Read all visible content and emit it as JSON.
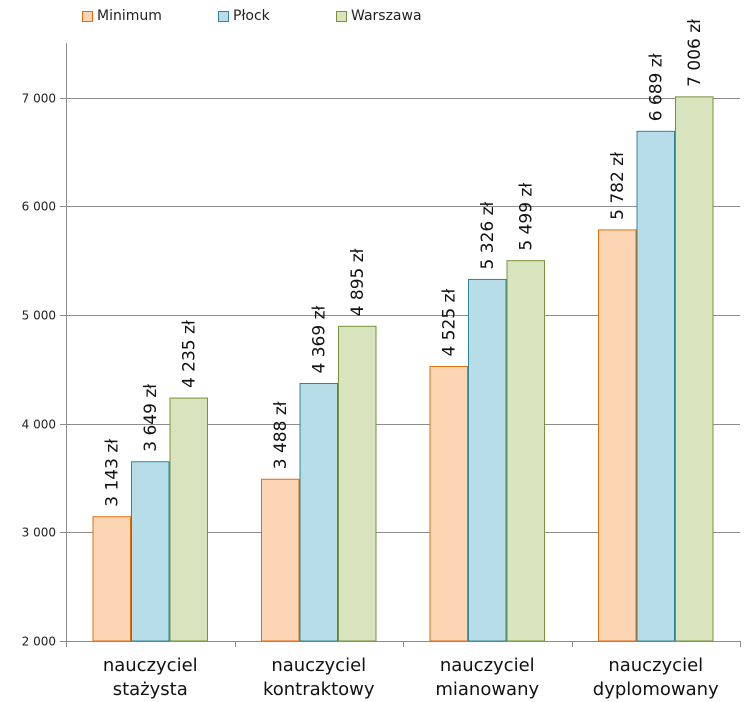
{
  "chart_data": {
    "type": "bar",
    "categories": [
      [
        "nauczyciel",
        "stażysta"
      ],
      [
        "nauczyciel",
        "kontraktowy"
      ],
      [
        "nauczyciel",
        "mianowany"
      ],
      [
        "nauczyciel",
        "dyplomowany"
      ]
    ],
    "series": [
      {
        "name": "Minimum",
        "values": [
          3143,
          3488,
          4525,
          5782
        ],
        "labels": [
          "3 143 zł",
          "3 488 zł",
          "4 525 zł",
          "5 782 zł"
        ],
        "fill": "#fcd5b5",
        "stroke": "#e46c0a"
      },
      {
        "name": "Płock",
        "values": [
          3649,
          4369,
          5326,
          6689
        ],
        "labels": [
          "3 649 zł",
          "4 369 zł",
          "5 326 zł",
          "6 689 zł"
        ],
        "fill": "#b7dee8",
        "stroke": "#31859c"
      },
      {
        "name": "Warszawa",
        "values": [
          4235,
          4895,
          5499,
          7006
        ],
        "labels": [
          "4 235 zł",
          "4 895 zł",
          "5 499 zł",
          "7 006 zł"
        ],
        "fill": "#d7e4bd",
        "stroke": "#77933c"
      }
    ],
    "yticks": [
      {
        "value": 2000,
        "label": "2 000"
      },
      {
        "value": 3000,
        "label": "3 000"
      },
      {
        "value": 4000,
        "label": "4 000"
      },
      {
        "value": 5000,
        "label": "5 000"
      },
      {
        "value": 6000,
        "label": "6 000"
      },
      {
        "value": 7000,
        "label": "7 000"
      }
    ],
    "ylim": [
      2000,
      7500
    ],
    "grid": true,
    "legend_position": "top-left"
  }
}
